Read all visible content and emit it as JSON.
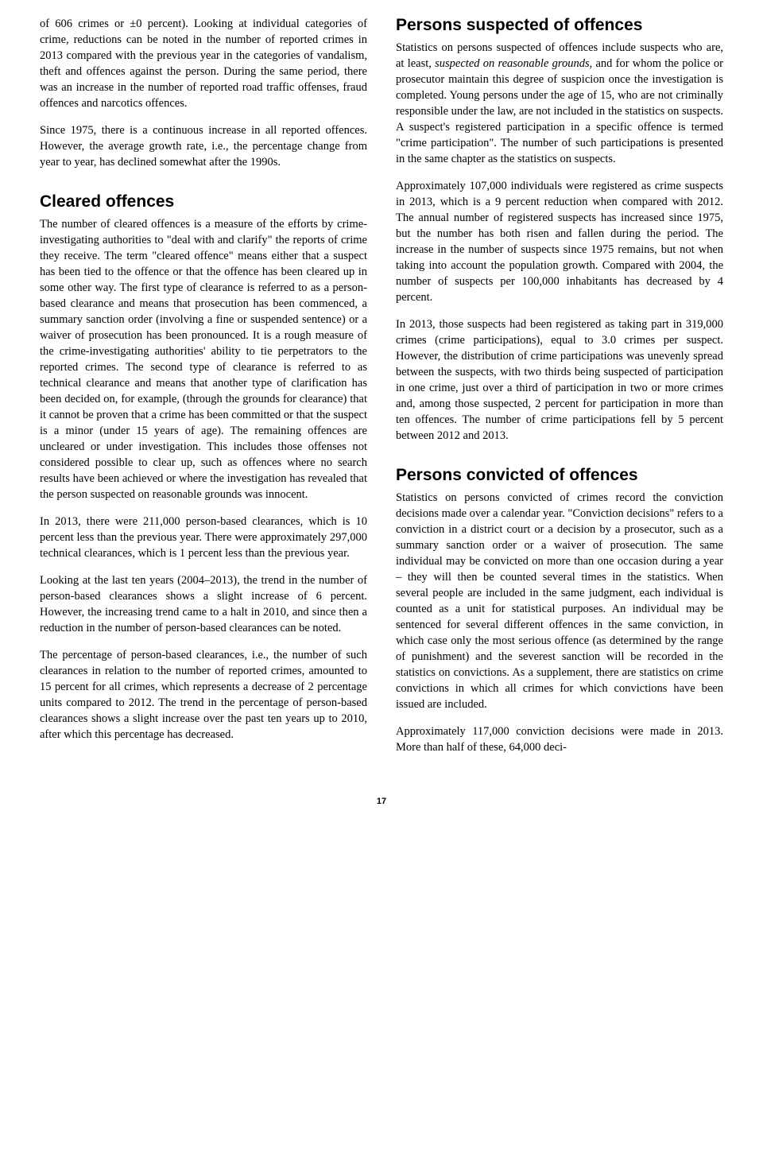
{
  "page": {
    "number": "17"
  },
  "left_column": {
    "intro_p1": "of 606 crimes or ±0 percent). Looking at individual categories of crime, reductions can be noted in the number of reported crimes in 2013 compared with the previous year in the categories of vandalism, theft and offences against the person. During the same period, there was an increase in the number of reported road traffic offenses, fraud offences and narcotics offences.",
    "intro_p2": "Since 1975, there is a continuous increase in all reported offences. However, the average growth rate, i.e., the percentage change from year to year, has declined somewhat after the 1990s.",
    "cleared_heading": "Cleared offences",
    "cleared_p1": "The number of cleared offences is a measure of the efforts by crime-investigating authorities to \"deal with and clarify\" the reports of crime they receive. The term \"cleared offence\" means either that a suspect has been tied to the offence or that the offence has been cleared up in some other way. The first type of clearance is referred to as a person-based clearance and means that prosecution has been commenced, a summary sanction order (involving a fine or suspended sentence) or a waiver of prosecution has been pronounced. It is a rough measure of the crime-investigating authorities' ability to tie perpetrators to the reported crimes. The second type of clearance is referred to as technical clearance and means that another type of clarification has been decided on, for example, (through the grounds for clearance) that it cannot be proven that a crime has been committed or that the suspect is a minor (under 15 years of age). The remaining offences are uncleared or under investigation. This includes those offenses not considered possible to clear up, such as offences where no search results have been achieved or where the investigation has revealed that the person suspected on reasonable grounds was innocent.",
    "cleared_p2": "In 2013, there were 211,000 person-based clearances, which is 10 percent less than the previous year. There were approximately 297,000 technical clearances, which is 1 percent less than the previous year.",
    "cleared_p3": "Looking at the last ten years (2004–2013), the trend in the number of person-based clearances shows a slight increase of 6 percent. However, the increasing trend came to a halt in 2010, and since then a reduction in the number of person-based clearances can be noted.",
    "cleared_p4": "The percentage of person-based clearances, i.e., the number of such clearances in relation to the number of reported crimes, amounted to 15 percent for all crimes, which represents a decrease of 2 percentage units compared to 2012. The trend in the percentage of person-based clearances shows a slight increase over the past ten years up to 2010, after which this percentage has decreased."
  },
  "right_column": {
    "suspected_heading": "Persons suspected of offences",
    "suspected_p1_pre": "Statistics on persons suspected of offences include suspects who are, at least, ",
    "suspected_p1_em": "suspected on reasonable grounds",
    "suspected_p1_post": ", and for whom the police or prosecutor maintain this degree of suspicion once the investigation is completed. Young persons under the age of 15, who are not criminally responsible under the law, are not included in the statistics on suspects. A suspect's registered participation in a specific offence is termed \"crime participation\". The number of such participations is presented in the same chapter as the statistics on suspects.",
    "suspected_p2": "Approximately 107,000 individuals were registered as crime suspects in 2013, which is a 9 percent reduction when compared with 2012. The annual number of registered suspects has increased since 1975, but the number has both risen and fallen during the period. The increase in the number of suspects since 1975 remains, but not when taking into account the population growth. Compared with 2004, the number of suspects per 100,000 inhabitants has decreased by 4 percent.",
    "suspected_p3": "In 2013, those suspects had been registered as taking part in 319,000 crimes (crime participations), equal to 3.0 crimes per suspect. However, the distribution of crime participations was unevenly spread between the suspects, with two thirds being suspected of participation in one crime, just over a third of participation in two or more crimes and, among those suspected, 2 percent for participation in more than ten offences. The number of crime participations fell by 5 percent between 2012 and 2013.",
    "convicted_heading": "Persons convicted of offences",
    "convicted_p1": "Statistics on persons convicted of crimes record the conviction decisions made over a calendar year. \"Conviction decisions\" refers to a conviction in a district court or a decision by a prosecutor, such as a summary sanction order or a waiver of prosecution. The same individual may be convicted on more than one occasion during a year – they will then be counted several times in the statistics. When several people are included in the same judgment, each individual is counted as a unit for statistical purposes. An individual may be sentenced for several different offences in the same conviction, in which case only the most serious offence (as determined by the range of punishment) and the severest sanction will be recorded in the statistics on convictions. As a supplement, there are statistics on crime convictions in which all crimes for which convictions have been issued are included.",
    "convicted_p2": "Approximately 117,000 conviction decisions were made in 2013. More than half of these, 64,000 deci-"
  }
}
